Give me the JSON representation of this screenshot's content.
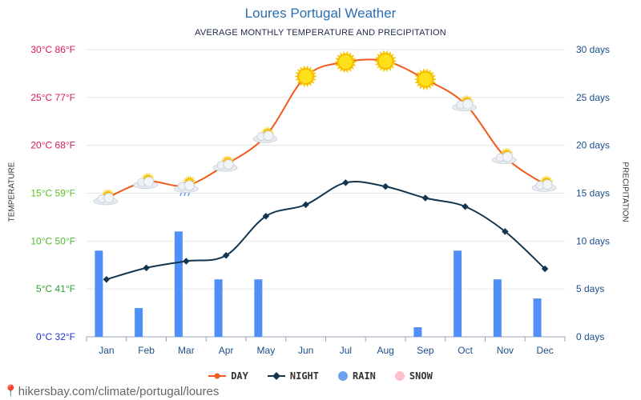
{
  "title": "Loures Portugal Weather",
  "subtitle": "AVERAGE MONTHLY TEMPERATURE AND PRECIPITATION",
  "footer": "hikersbay.com/climate/portugal/loures",
  "colors": {
    "day": "#f05a1a",
    "night": "#12364f",
    "rain": "#4f8ff7",
    "snow": "#ffb6c1",
    "grid": "#e6e6e6",
    "right_axis": "#1b4f8a",
    "sun": "#ffd500"
  },
  "chart_data": {
    "type": "line",
    "categories": [
      "Jan",
      "Feb",
      "Mar",
      "Apr",
      "May",
      "Jun",
      "Jul",
      "Aug",
      "Sep",
      "Oct",
      "Nov",
      "Dec"
    ],
    "series": [
      {
        "name": "DAY",
        "unit": "°C",
        "values": [
          14.5,
          16.2,
          15.8,
          18.0,
          21.0,
          27.2,
          28.7,
          28.8,
          26.9,
          24.3,
          18.8,
          15.9
        ]
      },
      {
        "name": "NIGHT",
        "unit": "°C",
        "values": [
          6.0,
          7.2,
          7.9,
          8.5,
          12.6,
          13.8,
          16.1,
          15.7,
          14.5,
          13.6,
          11.0,
          7.1
        ]
      },
      {
        "name": "RAIN",
        "unit": "days",
        "values": [
          9,
          3,
          11,
          6,
          6,
          0,
          0,
          0,
          1,
          9,
          6,
          4
        ]
      },
      {
        "name": "SNOW",
        "unit": "days",
        "values": [
          0,
          0,
          0,
          0,
          0,
          0,
          0,
          0,
          0,
          0,
          0,
          0
        ]
      }
    ],
    "weather_icons": [
      "partly-cloudy",
      "partly-cloudy",
      "cloud-rain",
      "partly-cloudy",
      "partly-cloudy",
      "sun",
      "sun",
      "sun",
      "sun",
      "partly-cloudy",
      "partly-cloudy",
      "partly-cloudy"
    ],
    "left_axis": {
      "title": "TEMPERATURE",
      "range": [
        0,
        30
      ],
      "ticks": [
        {
          "value": 0,
          "label": "0°C 32°F",
          "color": "#2233cc"
        },
        {
          "value": 5,
          "label": "5°C 41°F",
          "color": "#2e9e2e"
        },
        {
          "value": 10,
          "label": "10°C 50°F",
          "color": "#4dbb2a"
        },
        {
          "value": 15,
          "label": "15°C 59°F",
          "color": "#5cbf26"
        },
        {
          "value": 20,
          "label": "20°C 68°F",
          "color": "#d9185a"
        },
        {
          "value": 25,
          "label": "25°C 77°F",
          "color": "#d9185a"
        },
        {
          "value": 30,
          "label": "30°C 86°F",
          "color": "#d9185a"
        }
      ]
    },
    "right_axis": {
      "title": "PRECIPITATION",
      "range": [
        0,
        30
      ],
      "ticks": [
        {
          "value": 0,
          "label": "0 days"
        },
        {
          "value": 5,
          "label": "5 days"
        },
        {
          "value": 10,
          "label": "10 days"
        },
        {
          "value": 15,
          "label": "15 days"
        },
        {
          "value": 20,
          "label": "20 days"
        },
        {
          "value": 25,
          "label": "25 days"
        },
        {
          "value": 30,
          "label": "30 days"
        }
      ]
    },
    "legend": [
      {
        "name": "DAY",
        "marker": "line-dot"
      },
      {
        "name": "NIGHT",
        "marker": "line-diamond"
      },
      {
        "name": "RAIN",
        "marker": "circle"
      },
      {
        "name": "SNOW",
        "marker": "circle"
      }
    ],
    "legend_position": "bottom-center"
  }
}
